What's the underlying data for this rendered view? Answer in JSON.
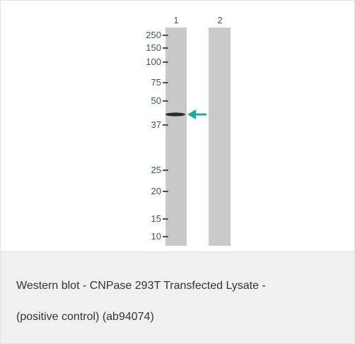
{
  "figure": {
    "lanes": [
      "1",
      "2"
    ],
    "markers": [
      "250",
      "150",
      "100",
      "75",
      "50",
      "37",
      "25",
      "20",
      "15",
      "10"
    ]
  },
  "caption": {
    "lines": [
      "Western blot - CNPase 293T Transfected Lysate -",
      "(positive control) (ab94074)"
    ]
  }
}
